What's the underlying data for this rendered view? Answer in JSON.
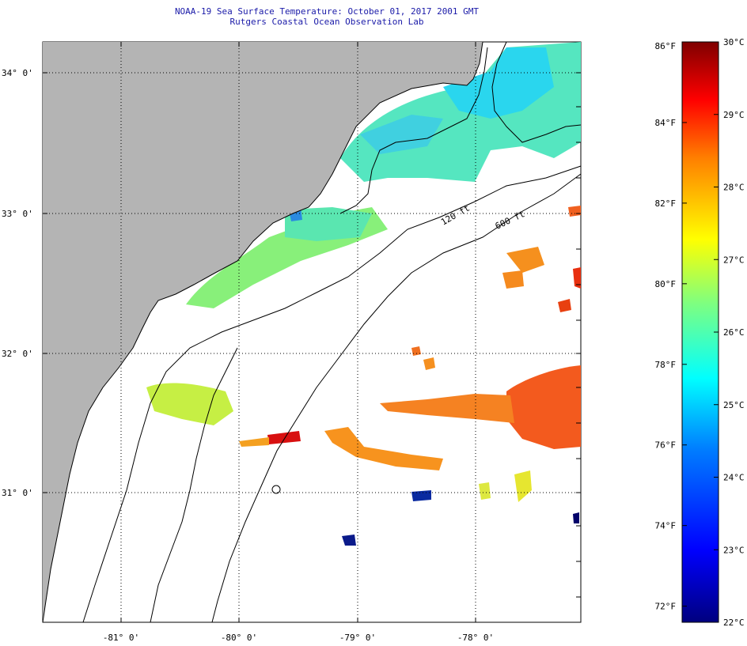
{
  "header": {
    "title": "NOAA-19 Sea Surface Temperature:  October 01, 2017 2001 GMT",
    "subtitle": "Rutgers Coastal Ocean Observation Lab"
  },
  "map": {
    "lat_labels": [
      "34° 0'",
      "33° 0'",
      "32° 0'",
      "31° 0'"
    ],
    "lat_values": [
      34,
      33,
      32,
      31
    ],
    "lon_labels": [
      "-81° 0'",
      "-80° 0'",
      "-79° 0'",
      "-78° 0'"
    ],
    "lon_values": [
      -81,
      -80,
      -79,
      -78
    ],
    "lat_range": [
      30.2,
      34.3
    ],
    "lon_range": [
      -81.65,
      -77.1
    ],
    "isobaths": [
      {
        "label": "120 ft"
      },
      {
        "label": "600 ft"
      }
    ],
    "land_color": "#b4b4b4",
    "ocean_color": "#ffffff",
    "grid_style": "dotted"
  },
  "colorbar": {
    "fahrenheit_ticks": [
      "86°F",
      "84°F",
      "82°F",
      "80°F",
      "78°F",
      "76°F",
      "74°F",
      "72°F"
    ],
    "celsius_ticks": [
      "30°C",
      "29°C",
      "28°C",
      "27°C",
      "26°C",
      "25°C",
      "24°C",
      "23°C",
      "22°C"
    ],
    "range_celsius": [
      22,
      30
    ],
    "colors": [
      "#00007f",
      "#0000ff",
      "#007fff",
      "#00ffff",
      "#7fff7f",
      "#ffff00",
      "#ff7f00",
      "#ff0000",
      "#7f0000"
    ]
  }
}
